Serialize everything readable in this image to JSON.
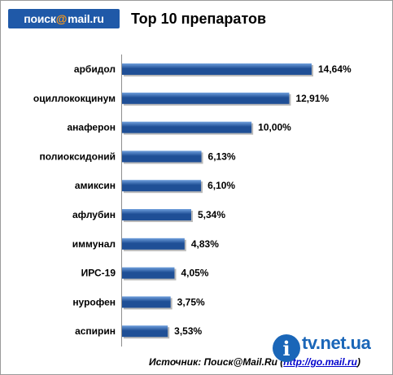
{
  "header": {
    "logo_left": "поиск",
    "logo_at": "@",
    "logo_right": "mail.ru",
    "title": "Top 10 препаратов"
  },
  "source": {
    "prefix": "Источник: Поиск@Mail.Ru (",
    "url": "http://go.mail.ru",
    "suffix": ")"
  },
  "watermark": {
    "glyph": "i",
    "text": "tv.net.ua"
  },
  "colors": {
    "bar_dark": "#1f4f96",
    "bar_light": "#6f9fdc",
    "brand": "#1f59a8"
  },
  "chart_data": {
    "type": "bar",
    "orientation": "horizontal",
    "categories": [
      "арбидол",
      "оциллококцинум",
      "анаферон",
      "полиоксидоний",
      "амиксин",
      "афлубин",
      "иммунал",
      "ИРС-19",
      "нурофен",
      "аспирин"
    ],
    "values": [
      14.64,
      12.91,
      10.0,
      6.13,
      6.1,
      5.34,
      4.83,
      4.05,
      3.75,
      3.53
    ],
    "value_labels": [
      "14,64%",
      "12,91%",
      "10,00%",
      "6,13%",
      "6,10%",
      "5,34%",
      "4,83%",
      "4,05%",
      "3,75%",
      "3,53%"
    ],
    "title": "Top 10 препаратов",
    "xlabel": "",
    "ylabel": "",
    "xlim": [
      0,
      16
    ],
    "grid": false,
    "legend": "none"
  }
}
